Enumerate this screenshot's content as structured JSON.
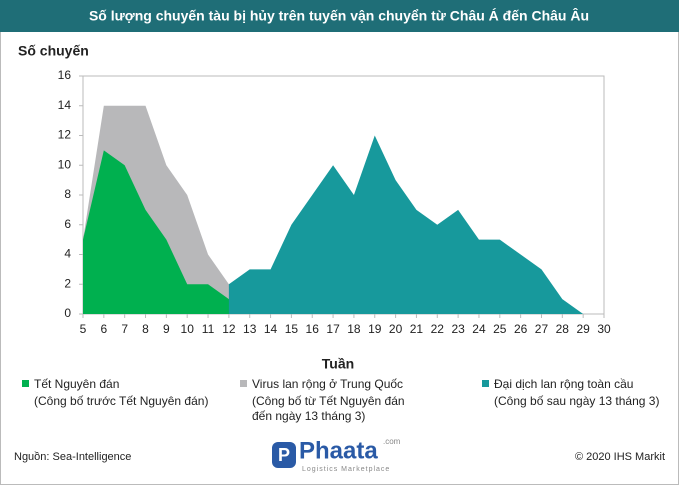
{
  "chart_data": {
    "type": "area",
    "title": "Số lượng chuyến tàu bị hủy trên tuyến vận chuyển từ Châu Á đến Châu Âu",
    "y_label": "Số chuyến",
    "x_label": "Tuần",
    "x": [
      5,
      6,
      7,
      8,
      9,
      10,
      11,
      12,
      13,
      14,
      15,
      16,
      17,
      18,
      19,
      20,
      21,
      22,
      23,
      24,
      25,
      26,
      27,
      28,
      29,
      30
    ],
    "series": [
      {
        "name": "Virus lan rộng ở Trung Quốc",
        "notes": [
          "(Công bố từ Tết Nguyên đán",
          "đến ngày 13 tháng 3)"
        ],
        "color": "#b8b8ba",
        "values": [
          5,
          14,
          14,
          14,
          10,
          8,
          4,
          2,
          2,
          2,
          0,
          null,
          null,
          null,
          null,
          null,
          null,
          null,
          null,
          null,
          null,
          null,
          null,
          null,
          null,
          null
        ]
      },
      {
        "name": "Tết Nguyên đán",
        "notes": [
          "(Công bố trước Tết Nguyên đán)"
        ],
        "color": "#00b04f",
        "values": [
          5,
          11,
          10,
          7,
          5,
          2,
          2,
          1,
          2,
          1,
          0,
          null,
          null,
          null,
          null,
          null,
          null,
          null,
          null,
          null,
          null,
          null,
          null,
          null,
          null,
          null
        ]
      },
      {
        "name": "Đại dịch lan rộng toàn cầu",
        "notes": [
          "(Công bố sau ngày 13 tháng 3)"
        ],
        "color": "#17999c",
        "values": [
          null,
          null,
          null,
          null,
          null,
          null,
          null,
          2,
          3,
          3,
          6,
          8,
          10,
          8,
          12,
          9,
          7,
          6,
          7,
          5,
          5,
          4,
          3,
          1,
          0,
          0
        ]
      }
    ],
    "xlim": [
      5,
      30
    ],
    "xticks": [
      5,
      6,
      7,
      8,
      9,
      10,
      11,
      12,
      13,
      14,
      15,
      16,
      17,
      18,
      19,
      20,
      21,
      22,
      23,
      24,
      25,
      26,
      27,
      28,
      29,
      30
    ],
    "ylim": [
      0,
      16
    ],
    "yticks": [
      0,
      2,
      4,
      6,
      8,
      10,
      12,
      14,
      16
    ],
    "grid": false,
    "source": "Nguồn: Sea-Intelligence",
    "copyright": "© 2020 IHS Markit"
  },
  "logo": {
    "name": "Phaata",
    "tagline": "Logistics Marketplace",
    "domain": ".com"
  }
}
